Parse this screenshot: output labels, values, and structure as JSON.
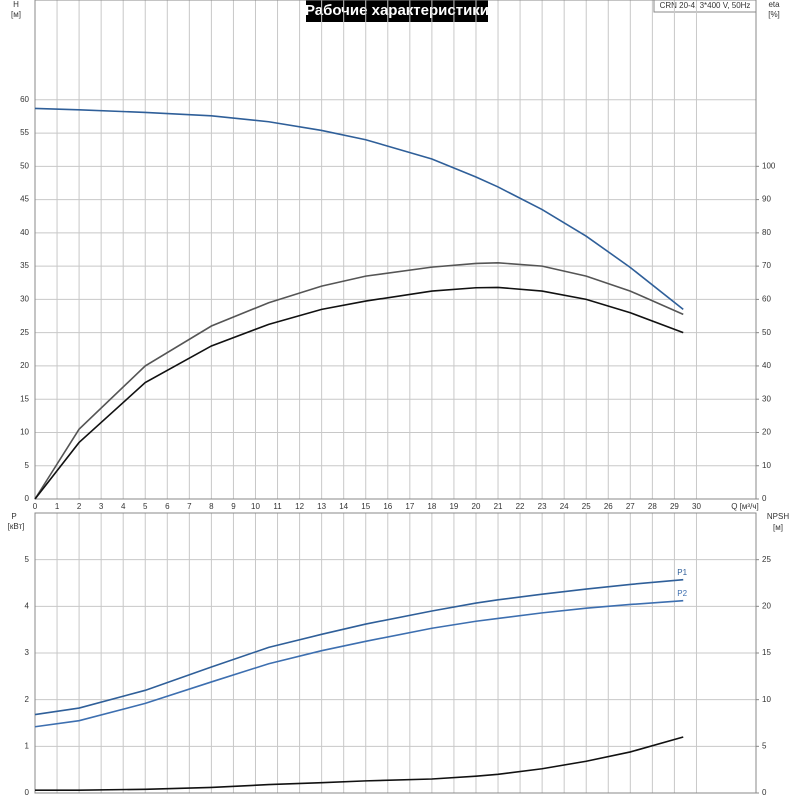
{
  "chart_data": [
    {
      "type": "line",
      "title": "Рабочие характеристики",
      "model": "CRN 20-4, 3*400 V, 50Hz",
      "y_label": "H",
      "y_unit": "[м]",
      "y2_label": "eta",
      "y2_unit": "[%]",
      "x_label": "Q [м³/ч]",
      "x": [
        0,
        2,
        5,
        8,
        10.6,
        13,
        15,
        18,
        20,
        21,
        23,
        25,
        27,
        29.4
      ],
      "xlim": [
        0,
        32.7
      ],
      "xticks": [
        0,
        1,
        2,
        3,
        4,
        5,
        6,
        7,
        8,
        9,
        10,
        11,
        12,
        13,
        14,
        15,
        16,
        17,
        18,
        19,
        20,
        21,
        22,
        23,
        24,
        25,
        26,
        27,
        28,
        29,
        30
      ],
      "ylim": [
        0,
        75
      ],
      "yticks": [
        0,
        5,
        10,
        15,
        20,
        25,
        30,
        35,
        40,
        45,
        50,
        55,
        60
      ],
      "y2lim": [
        0,
        150
      ],
      "y2ticks": [
        0,
        10,
        20,
        30,
        40,
        50,
        60,
        70,
        80,
        90,
        100
      ],
      "grid": true,
      "series": [
        {
          "color": "#2f5f99",
          "values": [
            58.7,
            58.5,
            58.1,
            57.6,
            56.7,
            55.4,
            54.0,
            51.1,
            48.4,
            46.9,
            43.5,
            39.5,
            34.8,
            28.5
          ]
        },
        {
          "color": "#555555",
          "axis": "y2",
          "values": [
            0,
            21,
            40,
            52,
            59,
            64,
            67,
            69.7,
            70.8,
            71,
            70,
            67,
            62.5,
            55.5
          ]
        },
        {
          "color": "#111111",
          "axis": "y2",
          "values": [
            0,
            17,
            35,
            46,
            52.5,
            57,
            59.5,
            62.5,
            63.5,
            63.6,
            62.5,
            60,
            56,
            50
          ]
        }
      ]
    },
    {
      "type": "line",
      "y_label": "P",
      "y_unit": "[кВт]",
      "y2_label": "NPSH",
      "y2_unit": "[м]",
      "x": [
        0,
        2,
        5,
        8,
        10.6,
        13,
        15,
        18,
        20,
        21,
        23,
        25,
        27,
        29.4
      ],
      "xlim": [
        0,
        32.7
      ],
      "ylim": [
        0,
        6
      ],
      "yticks": [
        0,
        1,
        2,
        3,
        4,
        5
      ],
      "y2lim": [
        0,
        30
      ],
      "y2ticks": [
        0,
        5,
        10,
        15,
        20,
        25
      ],
      "grid": true,
      "series": [
        {
          "name": "P1",
          "color": "#2f5f99",
          "values": [
            1.68,
            1.82,
            2.2,
            2.7,
            3.12,
            3.4,
            3.62,
            3.9,
            4.07,
            4.14,
            4.26,
            4.37,
            4.47,
            4.57
          ]
        },
        {
          "name": "P2",
          "color": "#3d6fb0",
          "values": [
            1.42,
            1.55,
            1.92,
            2.38,
            2.77,
            3.05,
            3.25,
            3.53,
            3.68,
            3.74,
            3.86,
            3.96,
            4.04,
            4.12
          ]
        },
        {
          "color": "#111111",
          "axis": "y2",
          "values": [
            0.3,
            0.3,
            0.4,
            0.6,
            0.9,
            1.1,
            1.3,
            1.5,
            1.8,
            2.0,
            2.6,
            3.4,
            4.4,
            6.0
          ]
        }
      ]
    }
  ]
}
